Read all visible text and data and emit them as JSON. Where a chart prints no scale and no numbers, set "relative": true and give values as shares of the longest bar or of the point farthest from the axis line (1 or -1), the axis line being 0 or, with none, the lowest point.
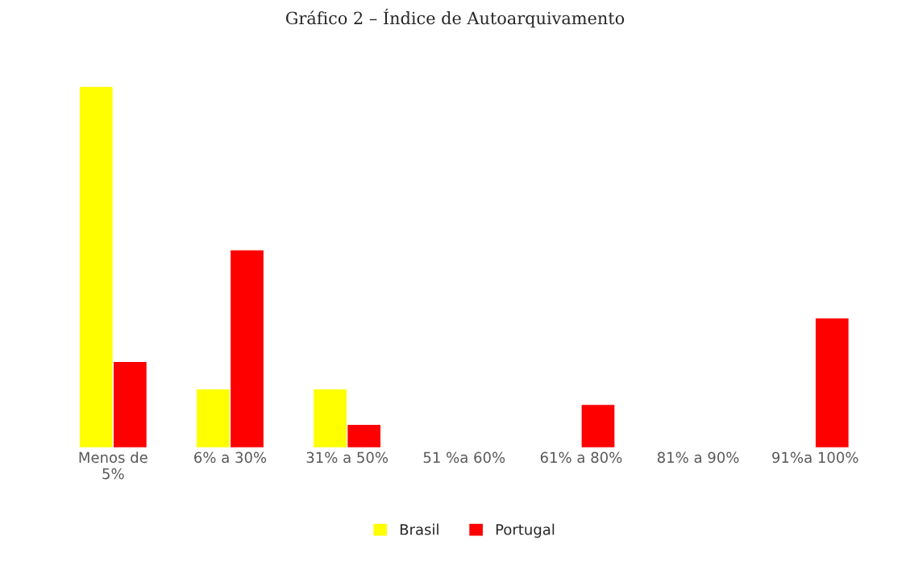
{
  "chart_data": {
    "type": "bar",
    "title": "Gráfico 2 – Índice de Autoarquivamento",
    "relative": true,
    "categories": [
      "Menos de\n5%",
      "6% a 30%",
      "31% a 50%",
      "51 %a 60%",
      "61% a 80%",
      "81% a 90%",
      "91%a 100%"
    ],
    "series": [
      {
        "name": "Brasil",
        "color": "#ffff00",
        "values": [
          1,
          0.163,
          0.163,
          null,
          null,
          null,
          null
        ]
      },
      {
        "name": "Portugal",
        "color": "#ff0000",
        "values": [
          0.239,
          0.548,
          0.065,
          null,
          0.12,
          null,
          0.359
        ]
      }
    ],
    "legend": "bottom",
    "grid": false
  }
}
